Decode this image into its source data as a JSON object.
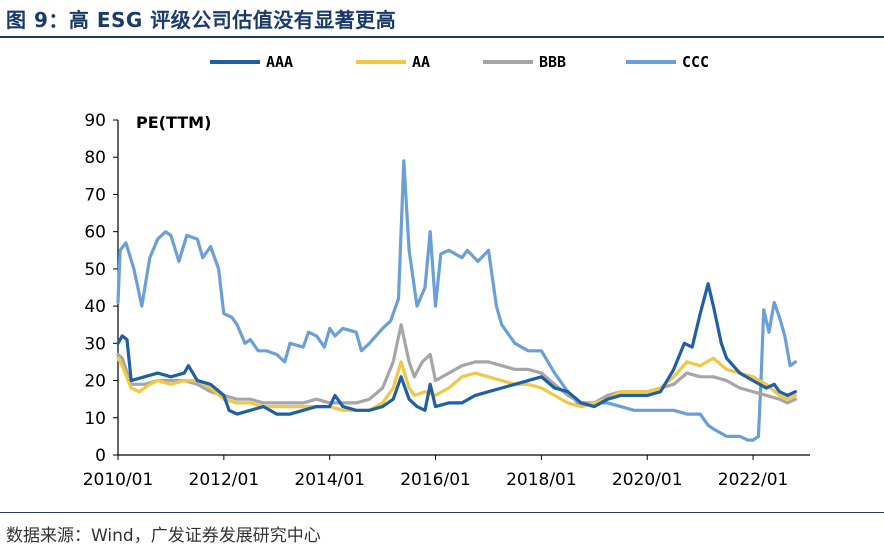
{
  "figure": {
    "title": "图 9：高 ESG 评级公司估值没有显著更高",
    "source": "数据来源：Wind，广发证券发展研究中心"
  },
  "chart_data": {
    "type": "line",
    "title": "图 9：高 ESG 评级公司估值没有显著更高",
    "ylabel": "PE(TTM)",
    "xlabel": "",
    "ylim": [
      0,
      90
    ],
    "yticks": [
      0,
      10,
      20,
      30,
      40,
      50,
      60,
      70,
      80,
      90
    ],
    "xlim": [
      2010.0,
      2023.0
    ],
    "xticks": [
      {
        "x": 2010.0,
        "label": "2010/01"
      },
      {
        "x": 2012.0,
        "label": "2012/01"
      },
      {
        "x": 2014.0,
        "label": "2014/01"
      },
      {
        "x": 2016.0,
        "label": "2016/01"
      },
      {
        "x": 2018.0,
        "label": "2018/01"
      },
      {
        "x": 2020.0,
        "label": "2020/01"
      },
      {
        "x": 2022.0,
        "label": "2022/01"
      }
    ],
    "grid": false,
    "legend_position": "top",
    "series": [
      {
        "name": "AAA",
        "color": "#1f5fa8",
        "points": [
          [
            2010.0,
            30
          ],
          [
            2010.08,
            32
          ],
          [
            2010.17,
            31
          ],
          [
            2010.25,
            20
          ],
          [
            2010.5,
            21
          ],
          [
            2010.75,
            22
          ],
          [
            2011.0,
            21
          ],
          [
            2011.25,
            22
          ],
          [
            2011.33,
            24
          ],
          [
            2011.5,
            20
          ],
          [
            2011.75,
            19
          ],
          [
            2012.0,
            16
          ],
          [
            2012.1,
            12
          ],
          [
            2012.25,
            11
          ],
          [
            2012.5,
            12
          ],
          [
            2012.75,
            13
          ],
          [
            2013.0,
            11
          ],
          [
            2013.25,
            11
          ],
          [
            2013.5,
            12
          ],
          [
            2013.75,
            13
          ],
          [
            2014.0,
            13
          ],
          [
            2014.1,
            16
          ],
          [
            2014.25,
            13
          ],
          [
            2014.5,
            12
          ],
          [
            2014.75,
            12
          ],
          [
            2015.0,
            13
          ],
          [
            2015.2,
            15
          ],
          [
            2015.35,
            21
          ],
          [
            2015.5,
            15
          ],
          [
            2015.65,
            13
          ],
          [
            2015.8,
            12
          ],
          [
            2015.9,
            19
          ],
          [
            2016.0,
            13
          ],
          [
            2016.25,
            14
          ],
          [
            2016.5,
            14
          ],
          [
            2016.75,
            16
          ],
          [
            2017.0,
            17
          ],
          [
            2017.25,
            18
          ],
          [
            2017.5,
            19
          ],
          [
            2017.75,
            20
          ],
          [
            2018.0,
            21
          ],
          [
            2018.25,
            18
          ],
          [
            2018.5,
            17
          ],
          [
            2018.75,
            14
          ],
          [
            2019.0,
            13
          ],
          [
            2019.25,
            15
          ],
          [
            2019.5,
            16
          ],
          [
            2019.75,
            16
          ],
          [
            2020.0,
            16
          ],
          [
            2020.25,
            17
          ],
          [
            2020.5,
            23
          ],
          [
            2020.7,
            30
          ],
          [
            2020.85,
            29
          ],
          [
            2021.0,
            38
          ],
          [
            2021.15,
            46
          ],
          [
            2021.25,
            40
          ],
          [
            2021.4,
            30
          ],
          [
            2021.5,
            26
          ],
          [
            2021.75,
            22
          ],
          [
            2022.0,
            20
          ],
          [
            2022.25,
            18
          ],
          [
            2022.4,
            19
          ],
          [
            2022.5,
            17
          ],
          [
            2022.65,
            16
          ],
          [
            2022.8,
            17
          ]
        ]
      },
      {
        "name": "AA",
        "color": "#f2c744",
        "points": [
          [
            2010.0,
            26
          ],
          [
            2010.08,
            24
          ],
          [
            2010.25,
            18
          ],
          [
            2010.4,
            17
          ],
          [
            2010.6,
            19
          ],
          [
            2010.75,
            20
          ],
          [
            2011.0,
            19
          ],
          [
            2011.25,
            20
          ],
          [
            2011.5,
            20
          ],
          [
            2011.75,
            18
          ],
          [
            2012.0,
            15
          ],
          [
            2012.25,
            14
          ],
          [
            2012.5,
            14
          ],
          [
            2012.75,
            13
          ],
          [
            2013.0,
            13
          ],
          [
            2013.25,
            13
          ],
          [
            2013.5,
            13
          ],
          [
            2013.75,
            13
          ],
          [
            2014.0,
            13
          ],
          [
            2014.25,
            12
          ],
          [
            2014.5,
            12
          ],
          [
            2014.75,
            12
          ],
          [
            2015.0,
            14
          ],
          [
            2015.2,
            18
          ],
          [
            2015.35,
            25
          ],
          [
            2015.5,
            18
          ],
          [
            2015.6,
            16
          ],
          [
            2015.8,
            17
          ],
          [
            2016.0,
            16
          ],
          [
            2016.25,
            18
          ],
          [
            2016.5,
            21
          ],
          [
            2016.75,
            22
          ],
          [
            2017.0,
            21
          ],
          [
            2017.25,
            20
          ],
          [
            2017.5,
            19
          ],
          [
            2017.75,
            19
          ],
          [
            2018.0,
            18
          ],
          [
            2018.25,
            16
          ],
          [
            2018.5,
            14
          ],
          [
            2018.75,
            13
          ],
          [
            2019.0,
            14
          ],
          [
            2019.25,
            15
          ],
          [
            2019.5,
            17
          ],
          [
            2019.75,
            17
          ],
          [
            2020.0,
            17
          ],
          [
            2020.25,
            18
          ],
          [
            2020.5,
            21
          ],
          [
            2020.75,
            25
          ],
          [
            2021.0,
            24
          ],
          [
            2021.25,
            26
          ],
          [
            2021.5,
            23
          ],
          [
            2021.75,
            22
          ],
          [
            2022.0,
            21
          ],
          [
            2022.25,
            19
          ],
          [
            2022.5,
            16
          ],
          [
            2022.65,
            15
          ],
          [
            2022.8,
            16
          ]
        ]
      },
      {
        "name": "BBB",
        "color": "#a6a6a6",
        "points": [
          [
            2010.0,
            27
          ],
          [
            2010.08,
            26
          ],
          [
            2010.25,
            19
          ],
          [
            2010.5,
            19
          ],
          [
            2010.75,
            20
          ],
          [
            2011.0,
            20
          ],
          [
            2011.25,
            20
          ],
          [
            2011.5,
            19
          ],
          [
            2011.75,
            17
          ],
          [
            2012.0,
            16
          ],
          [
            2012.25,
            15
          ],
          [
            2012.5,
            15
          ],
          [
            2012.75,
            14
          ],
          [
            2013.0,
            14
          ],
          [
            2013.25,
            14
          ],
          [
            2013.5,
            14
          ],
          [
            2013.75,
            15
          ],
          [
            2014.0,
            14
          ],
          [
            2014.25,
            14
          ],
          [
            2014.5,
            14
          ],
          [
            2014.75,
            15
          ],
          [
            2015.0,
            18
          ],
          [
            2015.2,
            25
          ],
          [
            2015.35,
            35
          ],
          [
            2015.5,
            25
          ],
          [
            2015.6,
            21
          ],
          [
            2015.75,
            25
          ],
          [
            2015.9,
            27
          ],
          [
            2016.0,
            20
          ],
          [
            2016.25,
            22
          ],
          [
            2016.5,
            24
          ],
          [
            2016.75,
            25
          ],
          [
            2017.0,
            25
          ],
          [
            2017.25,
            24
          ],
          [
            2017.5,
            23
          ],
          [
            2017.75,
            23
          ],
          [
            2018.0,
            22
          ],
          [
            2018.25,
            19
          ],
          [
            2018.5,
            16
          ],
          [
            2018.75,
            14
          ],
          [
            2019.0,
            14
          ],
          [
            2019.25,
            16
          ],
          [
            2019.5,
            17
          ],
          [
            2019.75,
            17
          ],
          [
            2020.0,
            17
          ],
          [
            2020.25,
            18
          ],
          [
            2020.5,
            19
          ],
          [
            2020.75,
            22
          ],
          [
            2021.0,
            21
          ],
          [
            2021.25,
            21
          ],
          [
            2021.5,
            20
          ],
          [
            2021.75,
            18
          ],
          [
            2022.0,
            17
          ],
          [
            2022.25,
            16
          ],
          [
            2022.5,
            15
          ],
          [
            2022.65,
            14
          ],
          [
            2022.8,
            15
          ]
        ]
      },
      {
        "name": "CCC",
        "color": "#6a9fd8",
        "points": [
          [
            2010.0,
            41
          ],
          [
            2010.04,
            55
          ],
          [
            2010.15,
            57
          ],
          [
            2010.3,
            50
          ],
          [
            2010.45,
            40
          ],
          [
            2010.6,
            53
          ],
          [
            2010.75,
            58
          ],
          [
            2010.9,
            60
          ],
          [
            2011.0,
            59
          ],
          [
            2011.15,
            52
          ],
          [
            2011.3,
            59
          ],
          [
            2011.5,
            58
          ],
          [
            2011.6,
            53
          ],
          [
            2011.75,
            56
          ],
          [
            2011.9,
            50
          ],
          [
            2012.0,
            38
          ],
          [
            2012.15,
            37
          ],
          [
            2012.25,
            35
          ],
          [
            2012.4,
            30
          ],
          [
            2012.5,
            31
          ],
          [
            2012.65,
            28
          ],
          [
            2012.8,
            28
          ],
          [
            2013.0,
            27
          ],
          [
            2013.15,
            25
          ],
          [
            2013.25,
            30
          ],
          [
            2013.5,
            29
          ],
          [
            2013.6,
            33
          ],
          [
            2013.75,
            32
          ],
          [
            2013.9,
            29
          ],
          [
            2014.0,
            34
          ],
          [
            2014.1,
            32
          ],
          [
            2014.25,
            34
          ],
          [
            2014.5,
            33
          ],
          [
            2014.6,
            28
          ],
          [
            2014.75,
            30
          ],
          [
            2015.0,
            34
          ],
          [
            2015.15,
            36
          ],
          [
            2015.3,
            42
          ],
          [
            2015.4,
            79
          ],
          [
            2015.5,
            55
          ],
          [
            2015.65,
            40
          ],
          [
            2015.8,
            45
          ],
          [
            2015.9,
            60
          ],
          [
            2016.0,
            40
          ],
          [
            2016.1,
            54
          ],
          [
            2016.25,
            55
          ],
          [
            2016.5,
            53
          ],
          [
            2016.6,
            55
          ],
          [
            2016.8,
            52
          ],
          [
            2017.0,
            55
          ],
          [
            2017.15,
            40
          ],
          [
            2017.25,
            35
          ],
          [
            2017.5,
            30
          ],
          [
            2017.75,
            28
          ],
          [
            2018.0,
            28
          ],
          [
            2018.25,
            22
          ],
          [
            2018.5,
            17
          ],
          [
            2018.75,
            13
          ],
          [
            2019.0,
            14
          ],
          [
            2019.25,
            14
          ],
          [
            2019.5,
            13
          ],
          [
            2019.75,
            12
          ],
          [
            2020.0,
            12
          ],
          [
            2020.25,
            12
          ],
          [
            2020.5,
            12
          ],
          [
            2020.75,
            11
          ],
          [
            2021.0,
            11
          ],
          [
            2021.15,
            8
          ],
          [
            2021.25,
            7
          ],
          [
            2021.5,
            5
          ],
          [
            2021.75,
            5
          ],
          [
            2021.9,
            4
          ],
          [
            2022.0,
            4
          ],
          [
            2022.1,
            5
          ],
          [
            2022.15,
            20
          ],
          [
            2022.2,
            39
          ],
          [
            2022.3,
            33
          ],
          [
            2022.4,
            41
          ],
          [
            2022.5,
            37
          ],
          [
            2022.6,
            32
          ],
          [
            2022.7,
            24
          ],
          [
            2022.8,
            25
          ]
        ]
      }
    ]
  }
}
